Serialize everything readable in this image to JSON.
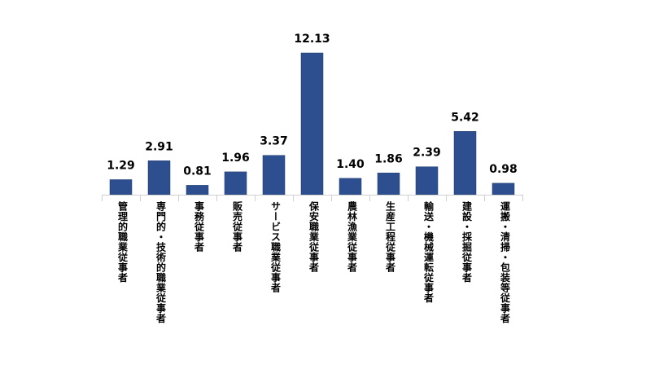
{
  "chart_data": {
    "type": "bar",
    "categories": [
      "管理的職業従事者",
      "専門的・技術的職業従事者",
      "事務従事者",
      "販売従事者",
      "サービス職業従事者",
      "保安職業従事者",
      "農林漁業従事者",
      "生産工程従事者",
      "輸送・機械運転従事者",
      "建設・採掘従事者",
      "運搬・清掃・包装等従事者"
    ],
    "values": [
      1.29,
      2.91,
      0.81,
      1.96,
      3.37,
      12.13,
      1.4,
      1.86,
      2.39,
      5.42,
      0.98
    ],
    "value_labels": [
      "1.29",
      "2.91",
      "0.81",
      "1.96",
      "3.37",
      "12.13",
      "1.40",
      "1.86",
      "2.39",
      "5.42",
      "0.98"
    ],
    "ylim": [
      0,
      12.13
    ],
    "grid": false,
    "colors": {
      "bar": "#2e4f8f",
      "bar_stroke": "#1f3a6e",
      "axis": "#d0d0d0"
    }
  }
}
